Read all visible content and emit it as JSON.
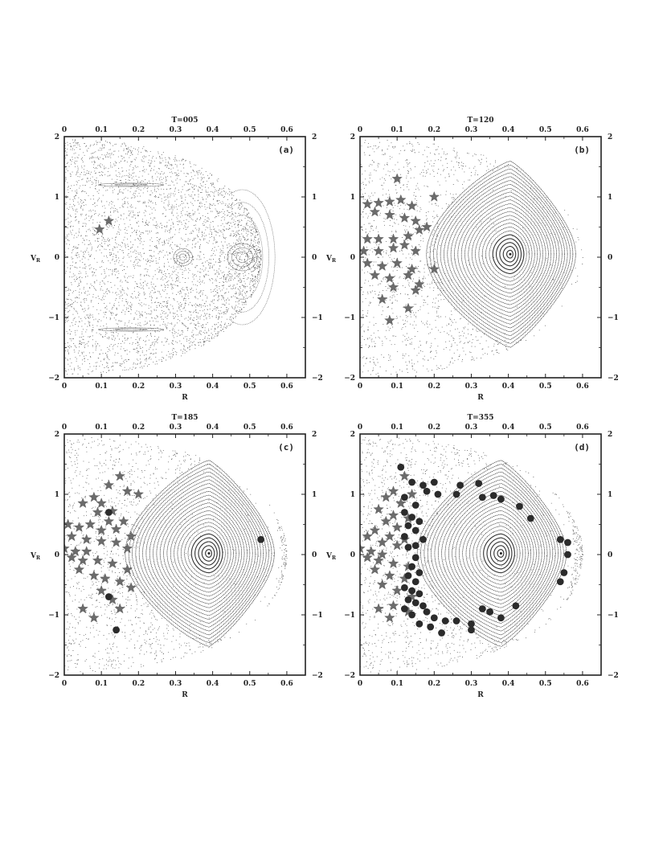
{
  "chart_data": [
    {
      "type": "scatter",
      "panel_label": "(a)",
      "title": "T=005",
      "xlabel": "R",
      "ylabel": "V",
      "ylabel_sub": "R",
      "xlim": [
        0,
        0.65
      ],
      "ylim": [
        -2,
        2
      ],
      "xticks": [
        "0",
        "0.1",
        "0.2",
        "0.3",
        "0.4",
        "0.5",
        "0.6"
      ],
      "yticks": [
        "2",
        "1",
        "0",
        "−1",
        "−2"
      ],
      "background": "chaotic",
      "islands": [
        {
          "center": [
            0.32,
            0.0
          ],
          "radii": [
            0.012,
            0.022,
            0.032
          ]
        },
        {
          "center": [
            0.48,
            0.0
          ],
          "radii": [
            0.02,
            0.035,
            0.05
          ]
        },
        {
          "center": [
            0.18,
            1.2
          ],
          "radii": [
            0.02,
            0.04
          ]
        },
        {
          "center": [
            0.18,
            -1.2
          ],
          "radii": [
            0.02,
            0.04
          ]
        }
      ],
      "stars": [
        [
          0.095,
          0.46
        ],
        [
          0.12,
          0.6
        ]
      ],
      "dots": []
    },
    {
      "type": "scatter",
      "panel_label": "(b)",
      "title": "T=120",
      "xlabel": "R",
      "ylabel": "V",
      "ylabel_sub": "R",
      "xlim": [
        0,
        0.65
      ],
      "ylim": [
        -2,
        2
      ],
      "xticks": [
        "0",
        "0.1",
        "0.2",
        "0.3",
        "0.4",
        "0.5",
        "0.6"
      ],
      "yticks": [
        "2",
        "1",
        "0",
        "−1",
        "−2"
      ],
      "background": "regular",
      "center": [
        0.405,
        0.05
      ],
      "stars": [
        [
          0.1,
          1.3
        ],
        [
          0.02,
          0.88
        ],
        [
          0.05,
          0.9
        ],
        [
          0.08,
          0.92
        ],
        [
          0.11,
          0.95
        ],
        [
          0.2,
          1.0
        ],
        [
          0.04,
          0.75
        ],
        [
          0.08,
          0.7
        ],
        [
          0.12,
          0.65
        ],
        [
          0.15,
          0.6
        ],
        [
          0.02,
          0.3
        ],
        [
          0.05,
          0.3
        ],
        [
          0.09,
          0.3
        ],
        [
          0.13,
          0.35
        ],
        [
          0.16,
          0.45
        ],
        [
          0.18,
          0.5
        ],
        [
          0.01,
          0.1
        ],
        [
          0.05,
          0.1
        ],
        [
          0.09,
          0.15
        ],
        [
          0.12,
          0.2
        ],
        [
          0.15,
          0.1
        ],
        [
          0.02,
          -0.1
        ],
        [
          0.06,
          -0.15
        ],
        [
          0.1,
          -0.1
        ],
        [
          0.14,
          -0.2
        ],
        [
          0.2,
          -0.2
        ],
        [
          0.04,
          -0.3
        ],
        [
          0.08,
          -0.35
        ],
        [
          0.13,
          -0.3
        ],
        [
          0.16,
          -0.45
        ],
        [
          0.09,
          -0.5
        ],
        [
          0.15,
          -0.55
        ],
        [
          0.06,
          -0.7
        ],
        [
          0.13,
          -0.85
        ],
        [
          0.08,
          -1.05
        ],
        [
          0.14,
          0.85
        ]
      ],
      "dots": []
    },
    {
      "type": "scatter",
      "panel_label": "(c)",
      "title": "T=185",
      "xlabel": "R",
      "ylabel": "V",
      "ylabel_sub": "R",
      "xlim": [
        0,
        0.65
      ],
      "ylim": [
        -2,
        2
      ],
      "xticks": [
        "0",
        "0.1",
        "0.2",
        "0.3",
        "0.4",
        "0.5",
        "0.6"
      ],
      "yticks": [
        "2",
        "1",
        "0",
        "−1",
        "−2"
      ],
      "background": "regular",
      "center": [
        0.39,
        0.02
      ],
      "stars": [
        [
          0.15,
          1.3
        ],
        [
          0.12,
          1.15
        ],
        [
          0.17,
          1.05
        ],
        [
          0.2,
          1.0
        ],
        [
          0.08,
          0.95
        ],
        [
          0.1,
          0.85
        ],
        [
          0.05,
          0.85
        ],
        [
          0.09,
          0.7
        ],
        [
          0.13,
          0.72
        ],
        [
          0.16,
          0.55
        ],
        [
          0.12,
          0.55
        ],
        [
          0.07,
          0.5
        ],
        [
          0.04,
          0.45
        ],
        [
          0.1,
          0.4
        ],
        [
          0.14,
          0.42
        ],
        [
          0.18,
          0.3
        ],
        [
          0.02,
          0.3
        ],
        [
          0.06,
          0.25
        ],
        [
          0.1,
          0.22
        ],
        [
          0.14,
          0.2
        ],
        [
          0.17,
          0.1
        ],
        [
          0.0,
          0.1
        ],
        [
          0.03,
          0.05
        ],
        [
          0.06,
          0.05
        ],
        [
          0.02,
          -0.05
        ],
        [
          0.05,
          -0.1
        ],
        [
          0.09,
          -0.1
        ],
        [
          0.13,
          -0.15
        ],
        [
          0.17,
          -0.25
        ],
        [
          0.04,
          -0.25
        ],
        [
          0.08,
          -0.35
        ],
        [
          0.11,
          -0.4
        ],
        [
          0.15,
          -0.45
        ],
        [
          0.18,
          -0.55
        ],
        [
          0.1,
          -0.6
        ],
        [
          0.13,
          -0.75
        ],
        [
          0.05,
          -0.9
        ],
        [
          0.15,
          -0.9
        ],
        [
          0.08,
          -1.05
        ],
        [
          0.01,
          0.5
        ]
      ],
      "dots": [
        [
          0.53,
          0.25
        ],
        [
          0.12,
          0.7
        ],
        [
          0.12,
          -0.7
        ],
        [
          0.14,
          -1.25
        ]
      ]
    },
    {
      "type": "scatter",
      "panel_label": "(d)",
      "title": "T=355",
      "xlabel": "R",
      "ylabel": "V",
      "ylabel_sub": "R",
      "xlim": [
        0,
        0.65
      ],
      "ylim": [
        -2,
        2
      ],
      "xticks": [
        "0",
        "0.1",
        "0.2",
        "0.3",
        "0.4",
        "0.5",
        "0.6"
      ],
      "yticks": [
        "2",
        "1",
        "0",
        "−1",
        "−2"
      ],
      "background": "regular",
      "center": [
        0.38,
        0.02
      ],
      "stars": [
        [
          0.12,
          1.3
        ],
        [
          0.09,
          1.05
        ],
        [
          0.14,
          1.0
        ],
        [
          0.07,
          0.95
        ],
        [
          0.11,
          0.85
        ],
        [
          0.05,
          0.75
        ],
        [
          0.09,
          0.65
        ],
        [
          0.13,
          0.6
        ],
        [
          0.07,
          0.55
        ],
        [
          0.1,
          0.45
        ],
        [
          0.04,
          0.4
        ],
        [
          0.08,
          0.3
        ],
        [
          0.12,
          0.25
        ],
        [
          0.02,
          0.3
        ],
        [
          0.06,
          0.2
        ],
        [
          0.1,
          0.15
        ],
        [
          0.0,
          0.1
        ],
        [
          0.03,
          0.05
        ],
        [
          0.06,
          0.0
        ],
        [
          0.02,
          -0.05
        ],
        [
          0.05,
          -0.1
        ],
        [
          0.09,
          -0.15
        ],
        [
          0.13,
          -0.2
        ],
        [
          0.04,
          -0.25
        ],
        [
          0.08,
          -0.35
        ],
        [
          0.12,
          -0.4
        ],
        [
          0.06,
          -0.5
        ],
        [
          0.1,
          -0.6
        ],
        [
          0.14,
          -0.7
        ],
        [
          0.09,
          -0.85
        ],
        [
          0.05,
          -0.9
        ],
        [
          0.13,
          -0.95
        ],
        [
          0.08,
          -1.05
        ]
      ],
      "dots": [
        [
          0.11,
          1.45
        ],
        [
          0.14,
          1.2
        ],
        [
          0.17,
          1.15
        ],
        [
          0.2,
          1.2
        ],
        [
          0.18,
          1.05
        ],
        [
          0.21,
          1.0
        ],
        [
          0.26,
          1.0
        ],
        [
          0.27,
          1.15
        ],
        [
          0.32,
          1.18
        ],
        [
          0.33,
          0.95
        ],
        [
          0.36,
          0.98
        ],
        [
          0.38,
          0.92
        ],
        [
          0.43,
          0.8
        ],
        [
          0.46,
          0.6
        ],
        [
          0.12,
          0.95
        ],
        [
          0.15,
          0.82
        ],
        [
          0.12,
          0.7
        ],
        [
          0.14,
          0.62
        ],
        [
          0.16,
          0.55
        ],
        [
          0.13,
          0.48
        ],
        [
          0.15,
          0.4
        ],
        [
          0.17,
          0.25
        ],
        [
          0.15,
          0.15
        ],
        [
          0.12,
          0.3
        ],
        [
          0.14,
          -0.2
        ],
        [
          0.16,
          -0.3
        ],
        [
          0.13,
          -0.35
        ],
        [
          0.15,
          -0.45
        ],
        [
          0.12,
          -0.55
        ],
        [
          0.14,
          -0.6
        ],
        [
          0.16,
          -0.65
        ],
        [
          0.13,
          -0.75
        ],
        [
          0.15,
          -0.8
        ],
        [
          0.17,
          -0.85
        ],
        [
          0.12,
          -0.9
        ],
        [
          0.14,
          -1.0
        ],
        [
          0.18,
          -0.95
        ],
        [
          0.2,
          -1.05
        ],
        [
          0.23,
          -1.1
        ],
        [
          0.19,
          -1.2
        ],
        [
          0.16,
          -1.15
        ],
        [
          0.22,
          -1.3
        ],
        [
          0.26,
          -1.1
        ],
        [
          0.3,
          -1.15
        ],
        [
          0.3,
          -1.25
        ],
        [
          0.33,
          -0.9
        ],
        [
          0.35,
          -0.95
        ],
        [
          0.38,
          -1.05
        ],
        [
          0.42,
          -0.85
        ],
        [
          0.54,
          0.25
        ],
        [
          0.56,
          0.2
        ],
        [
          0.56,
          0.0
        ],
        [
          0.55,
          -0.3
        ],
        [
          0.54,
          -0.45
        ],
        [
          0.13,
          0.12
        ],
        [
          0.15,
          -0.05
        ]
      ]
    }
  ]
}
